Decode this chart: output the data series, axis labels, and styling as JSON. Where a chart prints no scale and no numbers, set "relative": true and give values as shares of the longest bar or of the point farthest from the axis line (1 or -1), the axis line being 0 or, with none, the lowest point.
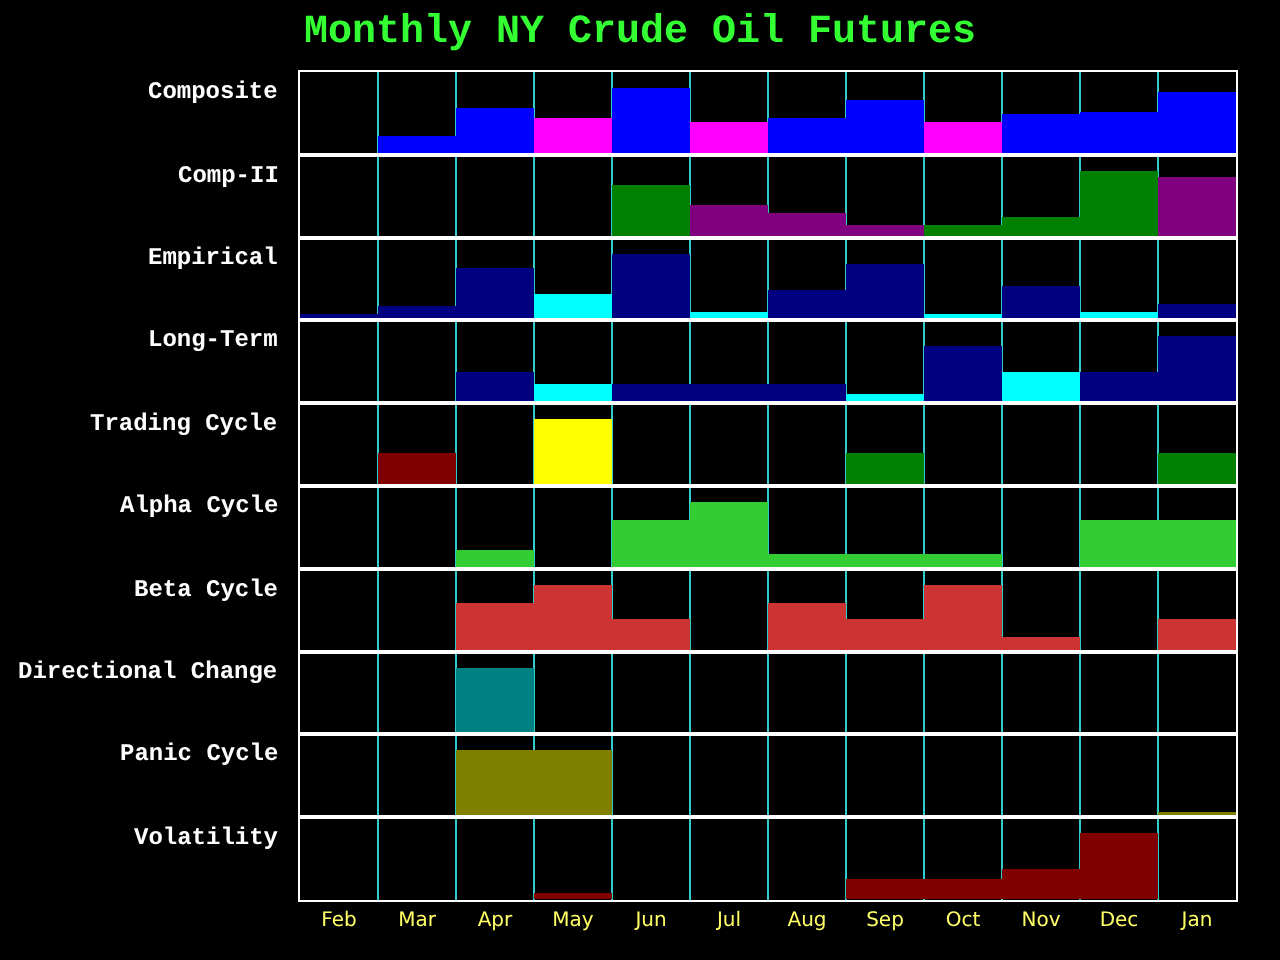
{
  "chart_data": [
    {
      "type": "bar",
      "title": "Monthly NY Crude Oil Futures",
      "ylabel": "Composite",
      "relative": true,
      "grid": "x",
      "tick_labels": false,
      "categories": [
        "Feb",
        "Mar",
        "Apr",
        "May",
        "Jun",
        "Jul",
        "Aug",
        "Sep",
        "Oct",
        "Nov",
        "Dec",
        "Jan"
      ],
      "values": [
        null,
        0.27,
        0.7,
        0.55,
        1,
        0.49,
        0.55,
        0.83,
        0.49,
        0.61,
        0.64,
        0.94
      ],
      "colors": [
        "#0000ff",
        "#0000ff",
        "#0000ff",
        "#ff00ff",
        "#0000ff",
        "#ff00ff",
        "#0000ff",
        "#0000ff",
        "#ff00ff",
        "#0000ff",
        "#0000ff",
        "#0000ff"
      ]
    },
    {
      "type": "bar",
      "ylabel": "Comp-II",
      "relative": true,
      "grid": "x",
      "tick_labels": false,
      "categories": [
        "Feb",
        "Mar",
        "Apr",
        "May",
        "Jun",
        "Jul",
        "Aug",
        "Sep",
        "Oct",
        "Nov",
        "Dec",
        "Jan"
      ],
      "values": [
        null,
        null,
        null,
        null,
        0.8,
        0.5,
        0.38,
        0.19,
        0.18,
        0.3,
        1,
        0.92
      ],
      "colors": [
        "#008000",
        "#008000",
        "#008000",
        "#008000",
        "#008000",
        "#800080",
        "#800080",
        "#800080",
        "#008000",
        "#008000",
        "#008000",
        "#800080"
      ]
    },
    {
      "type": "bar",
      "ylabel": "Empirical",
      "relative": true,
      "grid": "x",
      "tick_labels": false,
      "categories": [
        "Feb",
        "Mar",
        "Apr",
        "May",
        "Jun",
        "Jul",
        "Aug",
        "Sep",
        "Oct",
        "Nov",
        "Dec",
        "Jan"
      ],
      "values": [
        0.1,
        0.23,
        0.79,
        0.4,
        1,
        0.13,
        0.48,
        0.86,
        0.09,
        0.53,
        0.14,
        0.26
      ],
      "colors": [
        "#000080",
        "#000080",
        "#000080",
        "#00ffff",
        "#000080",
        "#00ffff",
        "#000080",
        "#000080",
        "#00ffff",
        "#000080",
        "#00ffff",
        "#000080"
      ]
    },
    {
      "type": "bar",
      "ylabel": "Long-Term",
      "relative": true,
      "grid": "x",
      "tick_labels": false,
      "categories": [
        "Feb",
        "Mar",
        "Apr",
        "May",
        "Jun",
        "Jul",
        "Aug",
        "Sep",
        "Oct",
        "Nov",
        "Dec",
        "Jan"
      ],
      "values": [
        null,
        null,
        0.48,
        0.28,
        0.28,
        0.28,
        0.28,
        0.12,
        0.86,
        0.48,
        0.48,
        1
      ],
      "colors": [
        "#000080",
        "#000080",
        "#000080",
        "#00ffff",
        "#000080",
        "#000080",
        "#000080",
        "#00ffff",
        "#000080",
        "#00ffff",
        "#000080",
        "#000080"
      ]
    },
    {
      "type": "bar",
      "ylabel": "Trading Cycle",
      "relative": true,
      "grid": "x",
      "tick_labels": false,
      "categories": [
        "Feb",
        "Mar",
        "Apr",
        "May",
        "Jun",
        "Jul",
        "Aug",
        "Sep",
        "Oct",
        "Nov",
        "Dec",
        "Jan"
      ],
      "values": [
        null,
        0.51,
        null,
        1,
        null,
        null,
        null,
        0.51,
        null,
        null,
        null,
        0.51
      ],
      "colors": [
        "#800000",
        "#800000",
        "#800000",
        "#ffff00",
        "#008000",
        "#008000",
        "#008000",
        "#008000",
        "#008000",
        "#008000",
        "#008000",
        "#008000"
      ]
    },
    {
      "type": "bar",
      "ylabel": "Alpha Cycle",
      "relative": true,
      "grid": "x",
      "tick_labels": false,
      "categories": [
        "Feb",
        "Mar",
        "Apr",
        "May",
        "Jun",
        "Jul",
        "Aug",
        "Sep",
        "Oct",
        "Nov",
        "Dec",
        "Jan"
      ],
      "values": [
        null,
        null,
        0.27,
        null,
        0.73,
        1,
        0.23,
        0.23,
        0.23,
        null,
        0.73,
        0.73
      ],
      "colors": [
        "#33cc33",
        "#33cc33",
        "#33cc33",
        "#33cc33",
        "#33cc33",
        "#33cc33",
        "#33cc33",
        "#33cc33",
        "#33cc33",
        "#33cc33",
        "#33cc33",
        "#33cc33"
      ]
    },
    {
      "type": "bar",
      "ylabel": "Beta Cycle",
      "relative": true,
      "grid": "x",
      "tick_labels": false,
      "categories": [
        "Feb",
        "Mar",
        "Apr",
        "May",
        "Jun",
        "Jul",
        "Aug",
        "Sep",
        "Oct",
        "Nov",
        "Dec",
        "Jan"
      ],
      "values": [
        null,
        null,
        0.73,
        1,
        0.5,
        null,
        0.73,
        0.5,
        1,
        0.22,
        null,
        0.5
      ],
      "colors": [
        "#cc3333",
        "#cc3333",
        "#cc3333",
        "#cc3333",
        "#cc3333",
        "#cc3333",
        "#cc3333",
        "#cc3333",
        "#cc3333",
        "#cc3333",
        "#cc3333",
        "#cc3333"
      ]
    },
    {
      "type": "bar",
      "ylabel": "Directional Change",
      "relative": true,
      "grid": "x",
      "tick_labels": false,
      "categories": [
        "Feb",
        "Mar",
        "Apr",
        "May",
        "Jun",
        "Jul",
        "Aug",
        "Sep",
        "Oct",
        "Nov",
        "Dec",
        "Jan"
      ],
      "values": [
        null,
        null,
        1,
        null,
        null,
        null,
        null,
        null,
        null,
        null,
        null,
        null
      ],
      "colors": [
        "#008080",
        "#008080",
        "#008080",
        "#008080",
        "#008080",
        "#008080",
        "#008080",
        "#008080",
        "#008080",
        "#008080",
        "#008080",
        "#008080"
      ]
    },
    {
      "type": "bar",
      "ylabel": "Panic Cycle",
      "relative": true,
      "grid": "x",
      "tick_labels": false,
      "categories": [
        "Feb",
        "Mar",
        "Apr",
        "May",
        "Jun",
        "Jul",
        "Aug",
        "Sep",
        "Oct",
        "Nov",
        "Dec",
        "Jan"
      ],
      "values": [
        null,
        null,
        1,
        1,
        null,
        null,
        null,
        null,
        null,
        null,
        null,
        0.08
      ],
      "colors": [
        "#808000",
        "#808000",
        "#808000",
        "#808000",
        "#808000",
        "#808000",
        "#808000",
        "#808000",
        "#808000",
        "#808000",
        "#808000",
        "#808000"
      ]
    },
    {
      "type": "bar",
      "ylabel": "Volatility",
      "relative": true,
      "grid": "x",
      "tick_labels": "x",
      "categories": [
        "Feb",
        "Mar",
        "Apr",
        "May",
        "Jun",
        "Jul",
        "Aug",
        "Sep",
        "Oct",
        "Nov",
        "Dec",
        "Jan"
      ],
      "values": [
        null,
        null,
        null,
        0.1,
        null,
        null,
        null,
        0.32,
        0.32,
        0.47,
        1,
        null
      ],
      "colors": [
        "#800000",
        "#800000",
        "#800000",
        "#800000",
        "#800000",
        "#800000",
        "#800000",
        "#800000",
        "#800000",
        "#800000",
        "#800000",
        "#800000"
      ]
    }
  ]
}
